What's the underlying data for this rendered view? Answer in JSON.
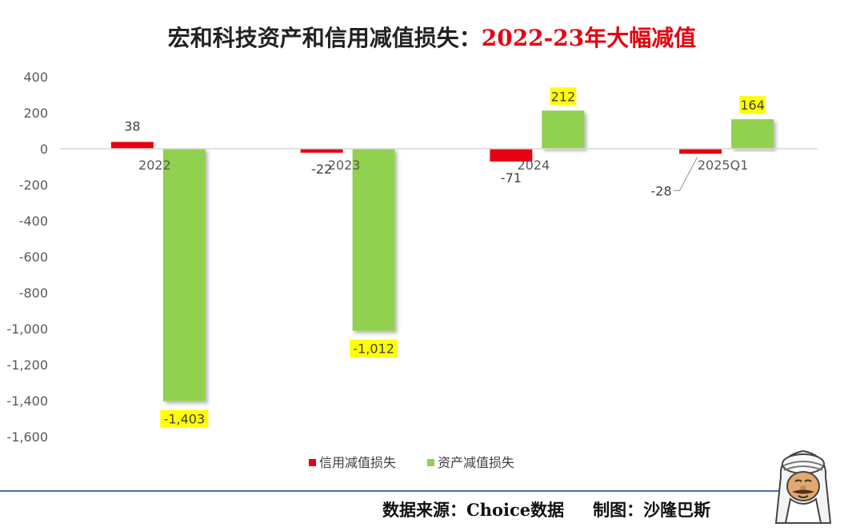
{
  "title": {
    "main": "宏和科技资产和信用减值损失：",
    "highlight": "2022-23年大幅减值"
  },
  "footer": {
    "source": "数据来源：Choice数据",
    "author": "制图：沙隆巴斯"
  },
  "colors": {
    "credit": "#e60012",
    "asset": "#92d050",
    "label_highlight": "#ffff00",
    "divider": "#4a6fb5"
  },
  "chart_data": {
    "type": "bar",
    "categories": [
      "2022",
      "2023",
      "2024",
      "2025Q1"
    ],
    "series": [
      {
        "name": "信用减值损失",
        "values": [
          38,
          -22,
          -71,
          -28
        ],
        "labels": [
          "38",
          "-22",
          "-71",
          "-28"
        ]
      },
      {
        "name": "资产减值损失",
        "values": [
          -1403,
          -1012,
          212,
          164
        ],
        "labels": [
          "-1,403",
          "-1,012",
          "212",
          "164"
        ]
      }
    ],
    "ylim": [
      -1600,
      400
    ],
    "yticks": [
      400,
      200,
      0,
      -200,
      -400,
      -600,
      -800,
      -1000,
      -1200,
      -1400,
      -1600
    ],
    "ytick_labels": [
      "400",
      "200",
      "0",
      "-200",
      "-400",
      "-600",
      "-800",
      "-1,000",
      "-1,200",
      "-1,400",
      "-1,600"
    ],
    "legend_position": "bottom",
    "grid": false
  }
}
